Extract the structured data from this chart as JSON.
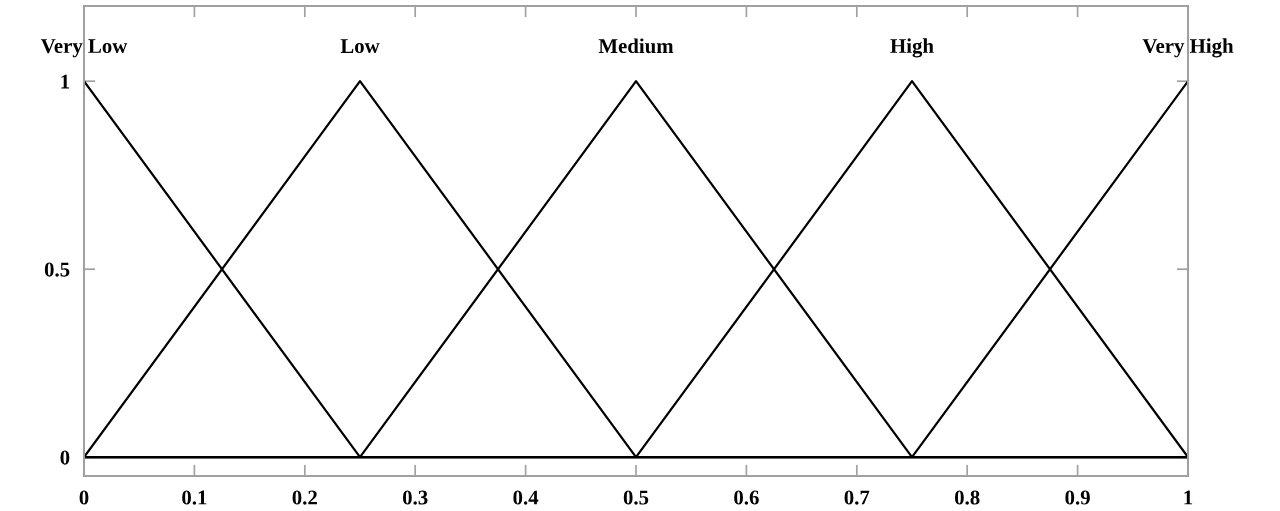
{
  "chart_data": {
    "type": "line",
    "xlim": [
      0,
      1
    ],
    "ylim": [
      -0.05,
      1.2
    ],
    "xticks": [
      0,
      0.1,
      0.2,
      0.3,
      0.4,
      0.5,
      0.6,
      0.7,
      0.8,
      0.9,
      1
    ],
    "yticks": [
      0,
      0.5,
      1
    ],
    "grid": false,
    "legend": false,
    "marker": "none",
    "line_style": "solid",
    "series": [
      {
        "name": "Very Low",
        "color": "#000000",
        "x": [
          0,
          0.25,
          1
        ],
        "values": [
          1,
          0,
          0
        ]
      },
      {
        "name": "Low",
        "color": "#000000",
        "x": [
          0,
          0.25,
          0.5,
          1
        ],
        "values": [
          0,
          1,
          0,
          0
        ]
      },
      {
        "name": "Medium",
        "color": "#000000",
        "x": [
          0,
          0.25,
          0.5,
          0.75,
          1
        ],
        "values": [
          0,
          0,
          1,
          0,
          0
        ]
      },
      {
        "name": "High",
        "color": "#000000",
        "x": [
          0,
          0.5,
          0.75,
          1
        ],
        "values": [
          0,
          0,
          1,
          0
        ]
      },
      {
        "name": "Very High",
        "color": "#000000",
        "x": [
          0,
          0.75,
          1
        ],
        "values": [
          0,
          0,
          1
        ]
      }
    ]
  }
}
